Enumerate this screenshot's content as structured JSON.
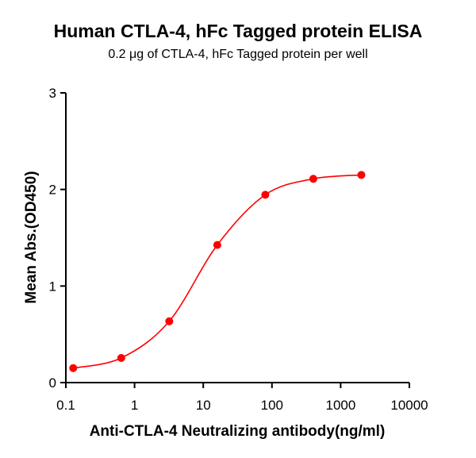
{
  "chart_data": {
    "type": "line",
    "title": "Human CTLA-4, hFc Tagged protein ELISA",
    "subtitle": "0.2 μg of CTLA-4, hFc Tagged protein per well",
    "xlabel": "Anti-CTLA-4 Neutralizing antibody(ng/ml)",
    "ylabel": "Mean Abs.(OD450)",
    "xscale": "log",
    "xlim": [
      0.1,
      10000
    ],
    "ylim": [
      0,
      3
    ],
    "xticks": [
      "0.1",
      "1",
      "10",
      "100",
      "1000",
      "10000"
    ],
    "yticks": [
      "0",
      "1",
      "2",
      "3"
    ],
    "grid": false,
    "color": "#ff0000",
    "series": [
      {
        "x": [
          0.128,
          0.64,
          3.2,
          16,
          80,
          400,
          2000
        ],
        "y": [
          0.15,
          0.255,
          0.635,
          1.425,
          1.945,
          2.11,
          2.15
        ]
      }
    ]
  }
}
